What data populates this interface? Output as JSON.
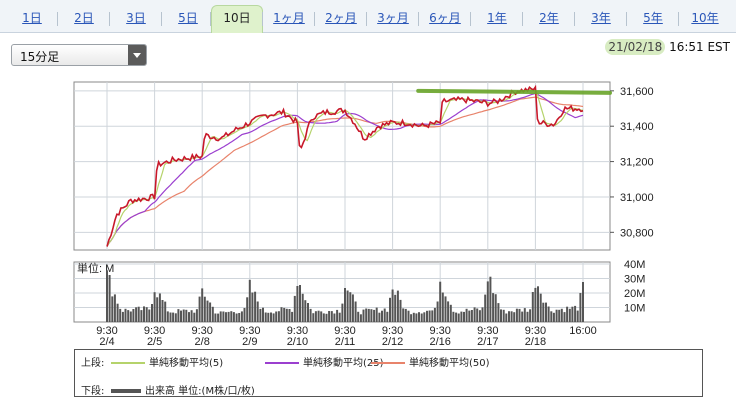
{
  "tabs": [
    {
      "label": "1日"
    },
    {
      "label": "2日"
    },
    {
      "label": "3日"
    },
    {
      "label": "5日"
    },
    {
      "label": "10日",
      "active": true
    },
    {
      "label": "1ヶ月"
    },
    {
      "label": "2ヶ月"
    },
    {
      "label": "3ヶ月"
    },
    {
      "label": "6ヶ月"
    },
    {
      "label": "1年"
    },
    {
      "label": "2年"
    },
    {
      "label": "3年"
    },
    {
      "label": "5年"
    },
    {
      "label": "10年"
    }
  ],
  "interval": {
    "selected": "15分足"
  },
  "timestamp": {
    "date": "21/02/18",
    "time": "16:51 EST"
  },
  "chart_data": {
    "type": "line",
    "y_ticks": [
      "31,600",
      "31,400",
      "31,200",
      "31,000",
      "30,800"
    ],
    "ylim": [
      30700,
      31650
    ],
    "volume_label": "単位: M",
    "volume_ticks": [
      "40M",
      "30M",
      "20M",
      "10M"
    ],
    "volume_ylim": [
      0,
      40
    ],
    "x_ticks": [
      {
        "time": "9:30",
        "date": "2/4"
      },
      {
        "time": "9:30",
        "date": "2/5"
      },
      {
        "time": "9:30",
        "date": "2/8"
      },
      {
        "time": "9:30",
        "date": "2/9"
      },
      {
        "time": "9:30",
        "date": "2/10"
      },
      {
        "time": "9:30",
        "date": "2/11"
      },
      {
        "time": "9:30",
        "date": "2/12"
      },
      {
        "time": "9:30",
        "date": "2/16"
      },
      {
        "time": "9:30",
        "date": "2/17"
      },
      {
        "time": "9:30",
        "date": "2/18"
      },
      {
        "time": "16:00",
        "date": ""
      }
    ],
    "price_anchors": [
      [
        0,
        30720
      ],
      [
        0.2,
        30900
      ],
      [
        0.5,
        30980
      ],
      [
        1.0,
        31000
      ],
      [
        1.05,
        31180
      ],
      [
        1.4,
        31210
      ],
      [
        2.0,
        31230
      ],
      [
        2.05,
        31350
      ],
      [
        2.4,
        31330
      ],
      [
        2.7,
        31380
      ],
      [
        3.0,
        31420
      ],
      [
        3.3,
        31460
      ],
      [
        3.7,
        31480
      ],
      [
        4.0,
        31420
      ],
      [
        4.05,
        31250
      ],
      [
        4.3,
        31450
      ],
      [
        4.6,
        31480
      ],
      [
        5.0,
        31490
      ],
      [
        5.2,
        31420
      ],
      [
        5.4,
        31330
      ],
      [
        5.7,
        31400
      ],
      [
        6.0,
        31420
      ],
      [
        6.3,
        31420
      ],
      [
        6.6,
        31400
      ],
      [
        7.0,
        31420
      ],
      [
        7.05,
        31540
      ],
      [
        7.5,
        31550
      ],
      [
        8.0,
        31530
      ],
      [
        8.2,
        31540
      ],
      [
        8.6,
        31600
      ],
      [
        9.0,
        31610
      ],
      [
        9.05,
        31420
      ],
      [
        9.4,
        31410
      ],
      [
        9.6,
        31500
      ],
      [
        10.0,
        31500
      ]
    ],
    "volume_anchors": [
      [
        0,
        32
      ],
      [
        0.3,
        8
      ],
      [
        0.9,
        9
      ],
      [
        1.0,
        24
      ],
      [
        1.3,
        7
      ],
      [
        1.9,
        8
      ],
      [
        2.0,
        22
      ],
      [
        2.3,
        6
      ],
      [
        2.9,
        8
      ],
      [
        3.0,
        24
      ],
      [
        3.3,
        7
      ],
      [
        3.9,
        9
      ],
      [
        4.0,
        30
      ],
      [
        4.3,
        7
      ],
      [
        4.9,
        8
      ],
      [
        5.0,
        26
      ],
      [
        5.3,
        7
      ],
      [
        5.9,
        9
      ],
      [
        6.0,
        24
      ],
      [
        6.3,
        7
      ],
      [
        6.9,
        8
      ],
      [
        7.0,
        30
      ],
      [
        7.3,
        7
      ],
      [
        7.9,
        9
      ],
      [
        8.0,
        32
      ],
      [
        8.3,
        7
      ],
      [
        8.9,
        9
      ],
      [
        9.0,
        30
      ],
      [
        9.3,
        8
      ],
      [
        9.9,
        10
      ],
      [
        10.0,
        24
      ]
    ],
    "resistance_level": 31600,
    "colors": {
      "price": "#c8182a",
      "ma5": "#b5d36b",
      "ma25": "#9b3fcf",
      "ma50": "#e8836b",
      "volume": "#555555",
      "resistance": "#6aa52a",
      "grid": "#cfd5db"
    }
  },
  "legend": {
    "upper_label": "上段:",
    "lower_label": "下段:",
    "ma5_label": "単純移動平均(5)",
    "ma25_label": "単純移動平均(25)",
    "ma50_label": "単純移動平均(50)",
    "volume_label": "出来高 単位:(M株/口/枚)"
  }
}
